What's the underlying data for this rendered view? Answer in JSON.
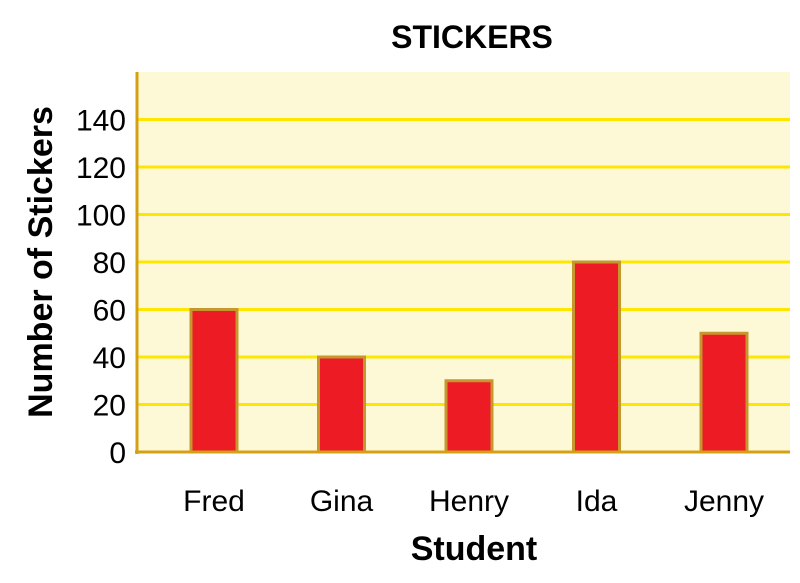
{
  "chart_data": {
    "type": "bar",
    "title": "STICKERS",
    "xlabel": "Student",
    "ylabel": "Number of Stickers",
    "categories": [
      "Fred",
      "Gina",
      "Henry",
      "Ida",
      "Jenny"
    ],
    "values": [
      60,
      40,
      30,
      80,
      50
    ],
    "ylim": [
      0,
      160
    ],
    "yticks": [
      0,
      20,
      40,
      60,
      80,
      100,
      120,
      140
    ],
    "grid": true,
    "legend": "none",
    "colors": {
      "plot_background": "#fdf9d6",
      "gridline": "#ffe600",
      "axis": "#d4a017",
      "bar_fill": "#ed1c24",
      "bar_stroke": "#c8962e"
    }
  }
}
